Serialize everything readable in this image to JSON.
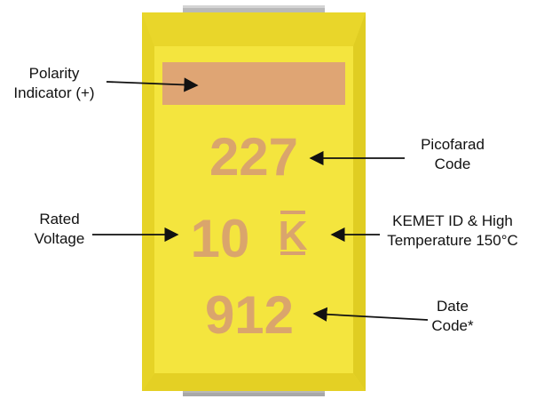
{
  "colors": {
    "body": "#f2e23a",
    "body_edge": "#d9c81e",
    "marking": "#d8a070",
    "terminal": "#b9b9b9",
    "arrow": "#111111"
  },
  "component": {
    "polarity_band_icon": "rectangle-band",
    "markings": {
      "picofarad_code": "227",
      "rated_voltage": "10",
      "kemet_id": "K",
      "date_code": "912"
    }
  },
  "callouts": {
    "polarity": {
      "line1": "Polarity",
      "line2": "Indicator (+)"
    },
    "picofarad": {
      "line1": "Picofarad",
      "line2": "Code"
    },
    "voltage": {
      "line1": "Rated",
      "line2": "Voltage"
    },
    "kemet": {
      "line1": "KEMET ID & High",
      "line2": "Temperature 150°C"
    },
    "date": {
      "line1": "Date",
      "line2": "Code*"
    }
  }
}
